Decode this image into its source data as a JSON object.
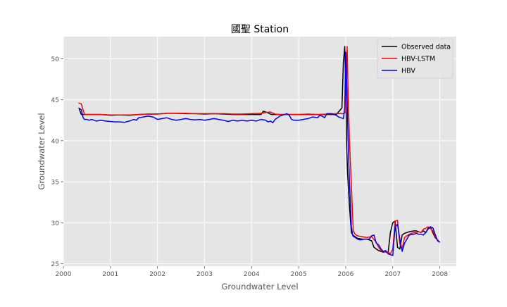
{
  "chart_data": {
    "type": "line",
    "title": "國聖 Station",
    "xlabel": "Groundwater Level",
    "ylabel": "Groundwater Level",
    "xlim": [
      2000.0,
      2008.35
    ],
    "ylim": [
      24.7,
      52.7
    ],
    "xticks": [
      2000,
      2001,
      2002,
      2003,
      2004,
      2005,
      2006,
      2007,
      2008
    ],
    "xtick_labels": [
      "2000",
      "2001",
      "2002",
      "2003",
      "2004",
      "2005",
      "2006",
      "2007",
      "2008"
    ],
    "yticks": [
      25,
      30,
      35,
      40,
      45,
      50
    ],
    "ytick_labels": [
      "25",
      "30",
      "35",
      "40",
      "45",
      "50"
    ],
    "grid": true,
    "legend": "top-right",
    "series": [
      {
        "name": "Observed data",
        "color": "#000000",
        "x": [
          2000.33,
          2000.38,
          2000.45,
          2000.6,
          2000.8,
          2001.0,
          2001.2,
          2001.4,
          2001.6,
          2001.8,
          2002.0,
          2002.2,
          2002.4,
          2002.6,
          2002.8,
          2003.0,
          2003.2,
          2003.4,
          2003.6,
          2003.8,
          2004.0,
          2004.1,
          2004.2,
          2004.25,
          2004.3,
          2004.35,
          2004.42,
          2004.5,
          2004.6,
          2004.8,
          2005.0,
          2005.2,
          2005.4,
          2005.6,
          2005.8,
          2005.92,
          2005.95,
          2005.98,
          2006.0,
          2006.02,
          2006.04,
          2006.08,
          2006.12,
          2006.15,
          2006.2,
          2006.25,
          2006.35,
          2006.45,
          2006.55,
          2006.6,
          2006.65,
          2006.7,
          2006.75,
          2006.8,
          2006.85,
          2006.9,
          2006.95,
          2007.0,
          2007.05,
          2007.1,
          2007.15,
          2007.2,
          2007.25,
          2007.35,
          2007.45,
          2007.5,
          2007.55,
          2007.6,
          2007.65,
          2007.7,
          2007.75,
          2007.8,
          2007.85,
          2007.9,
          2007.95,
          2008.0
        ],
        "y": [
          44.0,
          43.2,
          43.2,
          43.2,
          43.2,
          43.1,
          43.15,
          43.1,
          43.2,
          43.25,
          43.25,
          43.35,
          43.35,
          43.3,
          43.3,
          43.25,
          43.3,
          43.25,
          43.2,
          43.2,
          43.2,
          43.2,
          43.2,
          43.6,
          43.5,
          43.4,
          43.2,
          43.2,
          43.2,
          43.2,
          43.2,
          43.2,
          43.2,
          43.2,
          43.2,
          44.0,
          49.5,
          51.5,
          46.5,
          39.5,
          36.0,
          32.0,
          28.8,
          28.5,
          28.3,
          28.1,
          28.0,
          28.0,
          27.8,
          27.0,
          26.8,
          26.6,
          26.5,
          26.4,
          26.5,
          26.3,
          28.8,
          30.0,
          30.2,
          27.0,
          26.8,
          28.5,
          28.7,
          28.9,
          29.0,
          29.0,
          28.9,
          28.8,
          29.0,
          28.8,
          29.3,
          29.5,
          28.8,
          28.2,
          27.9,
          27.6
        ]
      },
      {
        "name": "HBV-LSTM",
        "color": "#ff0000",
        "x": [
          2000.32,
          2000.38,
          2000.45,
          2000.6,
          2000.8,
          2001.0,
          2001.2,
          2001.4,
          2001.6,
          2001.8,
          2002.0,
          2002.2,
          2002.4,
          2002.6,
          2002.8,
          2003.0,
          2003.2,
          2003.4,
          2003.6,
          2003.8,
          2004.0,
          2004.2,
          2004.3,
          2004.4,
          2004.5,
          2004.6,
          2004.8,
          2005.0,
          2005.2,
          2005.4,
          2005.6,
          2005.8,
          2005.95,
          2006.0,
          2006.03,
          2006.05,
          2006.08,
          2006.12,
          2006.16,
          2006.2,
          2006.25,
          2006.35,
          2006.45,
          2006.55,
          2006.65,
          2006.7,
          2006.75,
          2006.8,
          2006.85,
          2006.9,
          2006.95,
          2007.0,
          2007.05,
          2007.1,
          2007.15,
          2007.2,
          2007.25,
          2007.35,
          2007.45,
          2007.5,
          2007.55,
          2007.6,
          2007.65,
          2007.7,
          2007.75,
          2007.8,
          2007.85,
          2007.9,
          2007.95,
          2008.0
        ],
        "y": [
          44.6,
          44.5,
          43.2,
          43.2,
          43.2,
          43.15,
          43.15,
          43.15,
          43.2,
          43.25,
          43.25,
          43.35,
          43.35,
          43.35,
          43.3,
          43.3,
          43.3,
          43.3,
          43.25,
          43.25,
          43.3,
          43.35,
          43.45,
          43.5,
          43.25,
          43.2,
          43.2,
          43.2,
          43.25,
          43.2,
          43.25,
          43.3,
          43.3,
          43.5,
          51.5,
          46.0,
          40.0,
          34.5,
          29.0,
          28.6,
          28.4,
          28.3,
          28.2,
          28.3,
          27.6,
          27.0,
          26.6,
          26.5,
          26.4,
          26.4,
          26.2,
          26.8,
          30.2,
          30.3,
          27.4,
          26.8,
          28.2,
          28.6,
          28.8,
          28.8,
          28.9,
          28.8,
          29.2,
          29.3,
          29.5,
          29.3,
          29.0,
          28.3,
          27.9,
          27.6
        ]
      },
      {
        "name": "HBV",
        "color": "#0000ff",
        "x": [
          2000.32,
          2000.38,
          2000.42,
          2000.45,
          2000.5,
          2000.55,
          2000.6,
          2000.7,
          2000.8,
          2000.9,
          2001.0,
          2001.1,
          2001.2,
          2001.3,
          2001.4,
          2001.5,
          2001.55,
          2001.6,
          2001.7,
          2001.8,
          2001.9,
          2002.0,
          2002.1,
          2002.2,
          2002.3,
          2002.4,
          2002.5,
          2002.6,
          2002.7,
          2002.8,
          2002.9,
          2003.0,
          2003.1,
          2003.2,
          2003.3,
          2003.4,
          2003.5,
          2003.6,
          2003.7,
          2003.8,
          2003.9,
          2004.0,
          2004.1,
          2004.2,
          2004.3,
          2004.35,
          2004.4,
          2004.45,
          2004.5,
          2004.55,
          2004.6,
          2004.7,
          2004.75,
          2004.8,
          2004.85,
          2004.9,
          2005.0,
          2005.1,
          2005.2,
          2005.3,
          2005.4,
          2005.45,
          2005.5,
          2005.55,
          2005.6,
          2005.7,
          2005.8,
          2005.85,
          2005.9,
          2005.95,
          2005.98,
          2006.0,
          2006.03,
          2006.05,
          2006.08,
          2006.12,
          2006.15,
          2006.2,
          2006.25,
          2006.3,
          2006.4,
          2006.5,
          2006.55,
          2006.6,
          2006.65,
          2006.7,
          2006.75,
          2006.8,
          2006.85,
          2006.9,
          2006.95,
          2007.0,
          2007.05,
          2007.1,
          2007.15,
          2007.2,
          2007.25,
          2007.35,
          2007.45,
          2007.5,
          2007.55,
          2007.6,
          2007.65,
          2007.7,
          2007.75,
          2007.8,
          2007.85,
          2007.9,
          2007.95,
          2008.0
        ],
        "y": [
          44.0,
          43.8,
          42.8,
          42.6,
          42.6,
          42.5,
          42.6,
          42.4,
          42.5,
          42.4,
          42.35,
          42.3,
          42.3,
          42.25,
          42.4,
          42.6,
          42.5,
          42.8,
          42.9,
          43.0,
          42.9,
          42.6,
          42.7,
          42.8,
          42.6,
          42.5,
          42.6,
          42.7,
          42.6,
          42.55,
          42.6,
          42.5,
          42.6,
          42.7,
          42.6,
          42.5,
          42.35,
          42.5,
          42.4,
          42.5,
          42.4,
          42.5,
          42.4,
          42.6,
          42.5,
          42.3,
          42.4,
          42.2,
          42.6,
          42.8,
          43.0,
          43.2,
          43.3,
          43.1,
          42.6,
          42.5,
          42.5,
          42.6,
          42.7,
          42.9,
          42.8,
          43.1,
          43.0,
          42.8,
          43.3,
          43.3,
          43.1,
          42.9,
          42.8,
          42.7,
          44.0,
          50.8,
          45.0,
          40.0,
          35.0,
          29.5,
          28.4,
          28.2,
          28.0,
          27.9,
          28.0,
          28.0,
          28.4,
          28.5,
          27.5,
          27.3,
          26.8,
          26.5,
          26.6,
          26.2,
          26.1,
          26.0,
          29.5,
          29.8,
          28.0,
          26.5,
          27.5,
          28.5,
          28.6,
          28.7,
          28.6,
          28.6,
          28.5,
          28.8,
          29.2,
          29.5,
          29.4,
          28.6,
          27.8,
          27.6
        ]
      }
    ]
  }
}
